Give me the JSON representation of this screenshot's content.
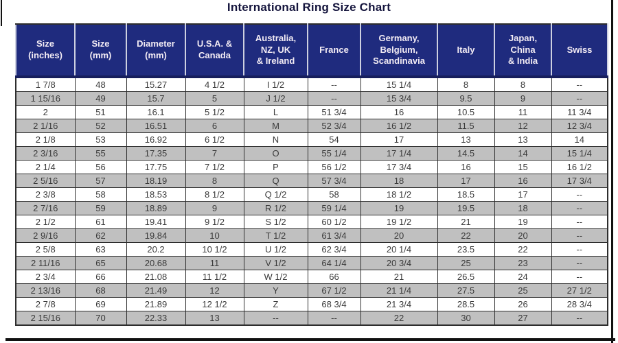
{
  "title": "International Ring Size Chart",
  "colors": {
    "header_bg": "#1f2b7e",
    "header_text": "#f3ecf4",
    "row_bg": "#ffffff",
    "row_alt_bg": "#c0c0c0",
    "cell_text": "#3a3a3a",
    "border": "#2e2e2e",
    "title_text": "#15153d",
    "frame": "#111111"
  },
  "chart_data": {
    "type": "table",
    "title": "International Ring Size Chart",
    "columns": [
      "Size\n(inches)",
      "Size\n(mm)",
      "Diameter\n(mm)",
      "U.S.A. &\nCanada",
      "Australia,\nNZ, UK\n& Ireland",
      "France",
      "Germany,\nBelgium,\nScandinavia",
      "Italy",
      "Japan,\nChina\n& India",
      "Swiss"
    ],
    "rows": [
      [
        "1 7/8",
        "48",
        "15.27",
        "4 1/2",
        "I 1/2",
        "--",
        "15 1/4",
        "8",
        "8",
        "--"
      ],
      [
        "1 15/16",
        "49",
        "15.7",
        "5",
        "J 1/2",
        "--",
        "15 3/4",
        "9.5",
        "9",
        "--"
      ],
      [
        "2",
        "51",
        "16.1",
        "5 1/2",
        "L",
        "51 3/4",
        "16",
        "10.5",
        "11",
        "11 3/4"
      ],
      [
        "2 1/16",
        "52",
        "16.51",
        "6",
        "M",
        "52 3/4",
        "16 1/2",
        "11.5",
        "12",
        "12 3/4"
      ],
      [
        "2 1/8",
        "53",
        "16.92",
        "6 1/2",
        "N",
        "54",
        "17",
        "13",
        "13",
        "14"
      ],
      [
        "2 3/16",
        "55",
        "17.35",
        "7",
        "O",
        "55 1/4",
        "17 1/4",
        "14.5",
        "14",
        "15 1/4"
      ],
      [
        "2 1/4",
        "56",
        "17.75",
        "7 1/2",
        "P",
        "56 1/2",
        "17 3/4",
        "16",
        "15",
        "16 1/2"
      ],
      [
        "2 5/16",
        "57",
        "18.19",
        "8",
        "Q",
        "57 3/4",
        "18",
        "17",
        "16",
        "17 3/4"
      ],
      [
        "2 3/8",
        "58",
        "18.53",
        "8 1/2",
        "Q 1/2",
        "58",
        "18 1/2",
        "18.5",
        "17",
        "--"
      ],
      [
        "2 7/16",
        "59",
        "18.89",
        "9",
        "R 1/2",
        "59 1/4",
        "19",
        "19.5",
        "18",
        "--"
      ],
      [
        "2 1/2",
        "61",
        "19.41",
        "9 1/2",
        "S 1/2",
        "60 1/2",
        "19 1/2",
        "21",
        "19",
        "--"
      ],
      [
        "2 9/16",
        "62",
        "19.84",
        "10",
        "T 1/2",
        "61 3/4",
        "20",
        "22",
        "20",
        "--"
      ],
      [
        "2 5/8",
        "63",
        "20.2",
        "10 1/2",
        "U 1/2",
        "62 3/4",
        "20 1/4",
        "23.5",
        "22",
        "--"
      ],
      [
        "2 11/16",
        "65",
        "20.68",
        "11",
        "V 1/2",
        "64 1/4",
        "20 3/4",
        "25",
        "23",
        "--"
      ],
      [
        "2 3/4",
        "66",
        "21.08",
        "11 1/2",
        "W 1/2",
        "66",
        "21",
        "26.5",
        "24",
        "--"
      ],
      [
        "2 13/16",
        "68",
        "21.49",
        "12",
        "Y",
        "67 1/2",
        "21 1/4",
        "27.5",
        "25",
        "27 1/2"
      ],
      [
        "2 7/8",
        "69",
        "21.89",
        "12 1/2",
        "Z",
        "68 3/4",
        "21 3/4",
        "28.5",
        "26",
        "28 3/4"
      ],
      [
        "2 15/16",
        "70",
        "22.33",
        "13",
        "--",
        "--",
        "22",
        "30",
        "27",
        "--"
      ]
    ]
  }
}
